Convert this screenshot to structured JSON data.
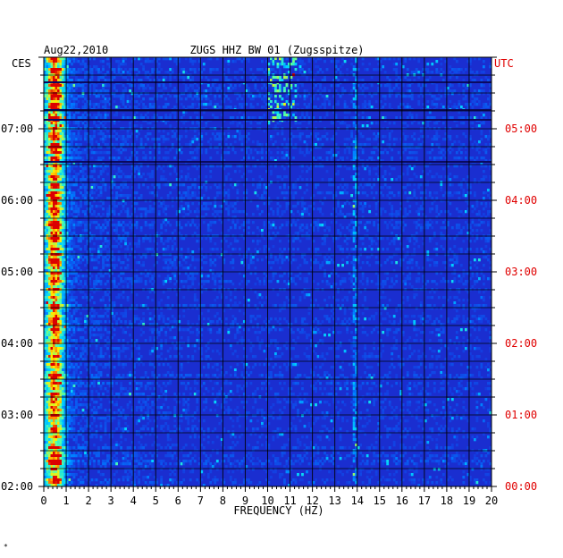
{
  "chart_data": {
    "type": "heatmap",
    "date": "Aug22,2010",
    "title": "ZUGS HHZ BW 01 (Zugsspitze)",
    "left_axis_label": "CES",
    "right_axis_label": "UTC",
    "xlabel": "FREQUENCY (HZ)",
    "x_ticks": [
      "0",
      "1",
      "2",
      "3",
      "4",
      "5",
      "6",
      "7",
      "8",
      "9",
      "10",
      "11",
      "12",
      "13",
      "14",
      "15",
      "16",
      "17",
      "18",
      "19",
      "20"
    ],
    "xlim": [
      0,
      20
    ],
    "left_time_ticks": [
      "07:00",
      "06:00",
      "05:00",
      "04:00",
      "03:00",
      "02:00"
    ],
    "right_time_ticks": [
      "05:00",
      "04:00",
      "03:00",
      "02:00",
      "01:00",
      "00:00"
    ],
    "time_range_ces": [
      "02:00",
      "08:00"
    ],
    "background_color": "#1a2ed0",
    "label_colors": {
      "left": "#000000",
      "right": "#e00000"
    },
    "grid": true,
    "footnote": "*"
  }
}
